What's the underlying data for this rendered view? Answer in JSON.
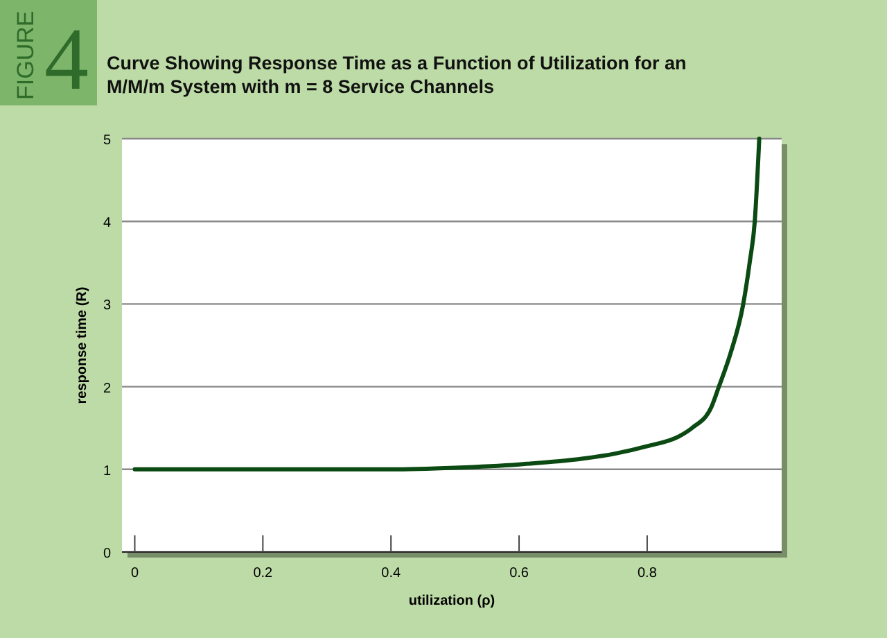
{
  "chart_data": {
    "type": "line",
    "title": "Curve Showing Response Time as a Function of Utilization for an M/M/m System with m = 8 Service Channels",
    "annotations": [
      "FIGURE",
      "4"
    ],
    "xlabel": "utilization (ρ)",
    "ylabel": "response time (R)",
    "x": [
      0,
      0.1,
      0.2,
      0.3,
      0.4,
      0.5,
      0.6,
      0.7,
      0.75,
      0.8,
      0.85,
      0.87,
      0.9,
      0.912,
      0.93,
      0.95,
      0.96,
      0.968,
      0.975
    ],
    "series": [
      {
        "color": "#0b4a12",
        "values": [
          1,
          1,
          1,
          1,
          1,
          1.02,
          1.06,
          1.13,
          1.19,
          1.28,
          1.4,
          1.5,
          1.75,
          2,
          2.4,
          3,
          3.5,
          4,
          5
        ]
      }
    ],
    "xlim": [
      -0.02,
      1.01
    ],
    "ylim": [
      0,
      5
    ],
    "xticks": [
      0,
      0.2,
      0.4,
      0.6,
      0.8
    ],
    "yticks": [
      0,
      1,
      2,
      3,
      4,
      5
    ],
    "grid": "y",
    "marker": "none",
    "line_style": "solid"
  }
}
